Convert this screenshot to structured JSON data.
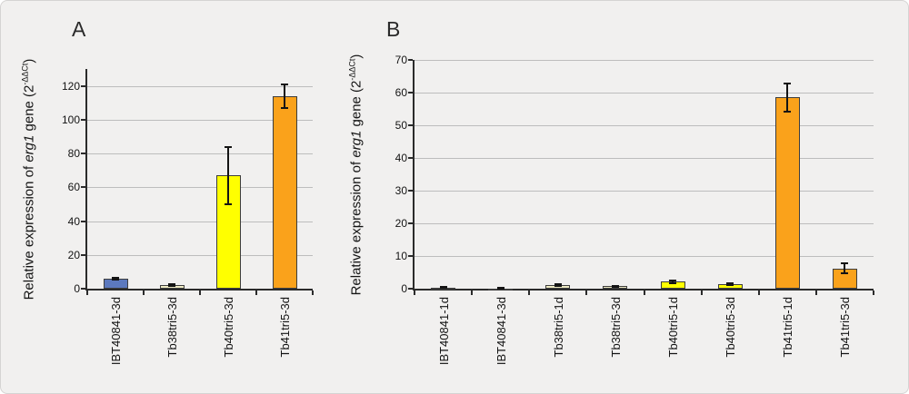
{
  "figure": {
    "background": "#f1f0ef",
    "description_colors": {
      "blue": "#5c79be",
      "cream": "#f0ecc5",
      "yellow": "#ffff00",
      "orange": "#faa21b",
      "gridline": "#bdbdbd",
      "axis": "#2b2b2b"
    }
  },
  "chart_data": [
    {
      "type": "bar",
      "panel_label": "A",
      "ylabel_parts": {
        "prefix": "Relative expression of ",
        "italic": "erg1",
        "mid": " gene (2",
        "sup": "-ΔΔCt",
        "suffix": ")"
      },
      "categories": [
        "IBT40841-3d",
        "Tb38tri5-3d",
        "Tb40tri5-3d",
        "Tb41tri5-3d"
      ],
      "values": [
        6,
        2,
        67,
        114
      ],
      "errors": [
        0.6,
        0.6,
        17,
        7
      ],
      "bar_colors": [
        "#5c79be",
        "#f0ecc5",
        "#ffff00",
        "#faa21b"
      ],
      "yticks": [
        0,
        20,
        40,
        60,
        80,
        100,
        120
      ],
      "ylim": [
        0,
        130
      ],
      "grid": true,
      "legend": "none"
    },
    {
      "type": "bar",
      "panel_label": "B",
      "ylabel_parts": {
        "prefix": "Relative expression of ",
        "italic": "erg1",
        "mid": " gene (2",
        "sup": "-ΔΔCt",
        "suffix": ")"
      },
      "categories": [
        "IBT40841-1d",
        "IBT40841-3d",
        "Tb38tri5-1d",
        "Tb38tri5-3d",
        "Tb40tri5-1d",
        "Tb40tri5-3d",
        "Tb41tri5-1d",
        "Tb41tri5-3d"
      ],
      "values": [
        0.4,
        0.1,
        1.2,
        0.7,
        2.1,
        1.4,
        58.5,
        6.2
      ],
      "errors": [
        0.25,
        0.05,
        0.3,
        0.2,
        0.3,
        0.2,
        4.3,
        1.6
      ],
      "bar_colors": [
        "#5c79be",
        "#5c79be",
        "#f0ecc5",
        "#f0ecc5",
        "#ffff00",
        "#ffff00",
        "#faa21b",
        "#faa21b"
      ],
      "yticks": [
        0,
        10,
        20,
        30,
        40,
        50,
        60,
        70
      ],
      "ylim": [
        0,
        70
      ],
      "grid": true,
      "legend": "none"
    }
  ]
}
